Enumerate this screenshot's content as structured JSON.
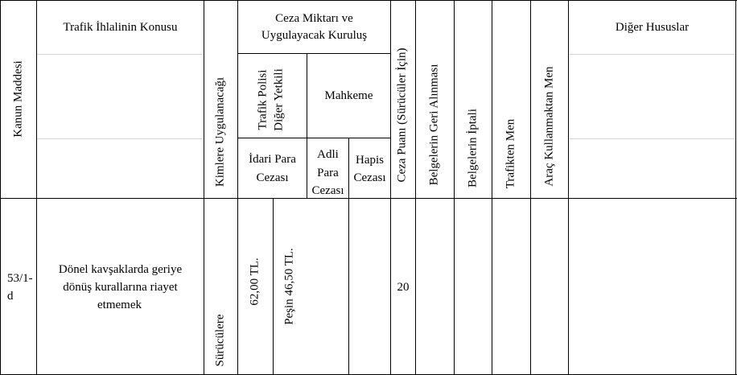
{
  "headers": {
    "kanun_maddesi": "Kanun Maddesi",
    "ihlal_konusu": "Trafik İhlalinin Konusu",
    "kimlere": "Kimlere Uygulanacağı",
    "ceza_miktari_line1": "Ceza Miktarı ve",
    "ceza_miktari_line2": "Uygulayacak Kuruluş",
    "trafik_polisi_line1": "Trafik Polisi",
    "trafik_polisi_line2": "Diğer Yetkili",
    "mahkeme": "Mahkeme",
    "idari_line1": "İdari Para",
    "idari_line2": "Cezası",
    "adli_line1": "Adli",
    "adli_line2": "Para",
    "adli_line3": "Cezası",
    "hapis_line1": "Hapis",
    "hapis_line2": "Cezası",
    "ceza_puani": "Ceza Puanı (Sürücüler İçin)",
    "belge_geri": "Belgelerin Geri Alınması",
    "belge_iptal": "Belgelerin İptali",
    "trafikten_men": "Trafikten Men",
    "arac_men": "Araç Kullanmaktan Men",
    "diger": "Diğer Hususlar"
  },
  "row": {
    "madde_line1": "53/1-",
    "madde_line2": "d",
    "konu_line1": "Dönel kavşaklarda geriye",
    "konu_line2": "dönüş kurallarına riayet",
    "konu_line3": "etmemek",
    "kimlere": "Sürücülere",
    "idari_tutar": "62,00 TL.",
    "pesin_tutar": "Peşin 46,50 TL.",
    "ceza_puani": "20"
  }
}
